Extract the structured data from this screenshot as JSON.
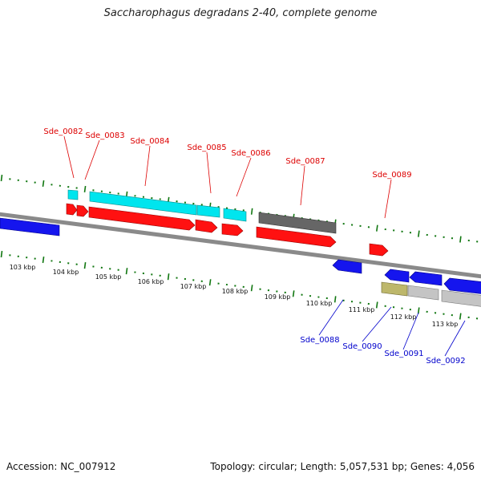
{
  "title": "Saccharophagus degradans 2-40, complete genome",
  "footer": {
    "accession": "Accession: NC_007912",
    "summary": "Topology: circular; Length: 5,057,531 bp; Genes: 4,056"
  },
  "colors": {
    "backbone": "#8a8a8a",
    "ticks": "#117711",
    "label_red": "#dd0000",
    "label_blue": "#0000cc"
  },
  "kbp_labels": [
    "103 kbp",
    "104 kbp",
    "105 kbp",
    "106 kbp",
    "107 kbp",
    "108 kbp",
    "109 kbp",
    "110 kbp",
    "111 kbp",
    "112 kbp",
    "113 kbp"
  ],
  "genes_top": [
    {
      "id": "Sde_0082"
    },
    {
      "id": "Sde_0083"
    },
    {
      "id": "Sde_0084"
    },
    {
      "id": "Sde_0085"
    },
    {
      "id": "Sde_0086"
    },
    {
      "id": "Sde_0087"
    },
    {
      "id": "Sde_0089"
    }
  ],
  "genes_bottom": [
    {
      "id": "Sde_0088"
    },
    {
      "id": "Sde_0090"
    },
    {
      "id": "Sde_0091"
    },
    {
      "id": "Sde_0092"
    }
  ]
}
